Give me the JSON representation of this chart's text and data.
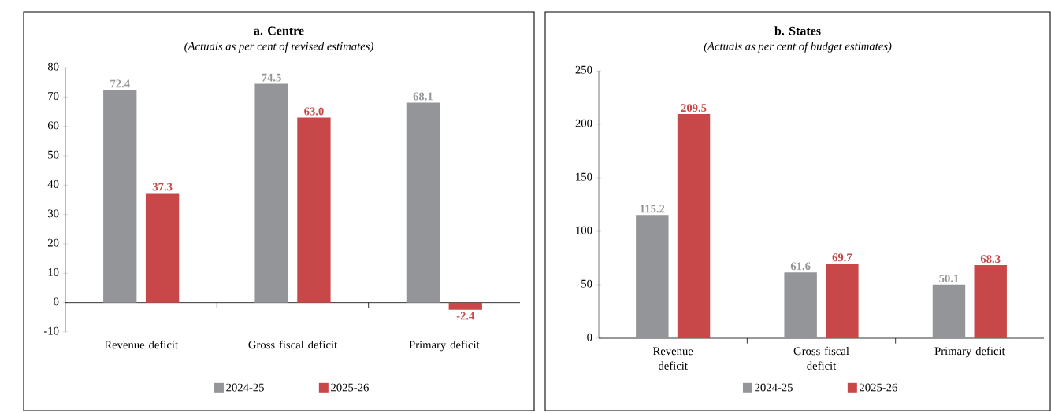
{
  "chart_data": [
    {
      "type": "bar",
      "title": "a. Centre",
      "subtitle": "(Actuals as per cent of revised estimates)",
      "categories": [
        "Revenue deficit",
        "Gross fiscal deficit",
        "Primary deficit"
      ],
      "series": [
        {
          "name": "2024-25",
          "color": "#939598",
          "values": [
            72.4,
            74.5,
            68.1
          ],
          "value_labels": [
            "72.4",
            "74.5",
            "68.1"
          ]
        },
        {
          "name": "2025-26",
          "color": "#c8484a",
          "values": [
            37.3,
            63.0,
            -2.4
          ],
          "value_labels": [
            "37.3",
            "63.0",
            "-2.4"
          ]
        }
      ],
      "ylim": [
        -10,
        80
      ],
      "yticks": [
        -10,
        0,
        10,
        20,
        30,
        40,
        50,
        60,
        70,
        80
      ],
      "legend": "bottom"
    },
    {
      "type": "bar",
      "title": "b. States",
      "subtitle": "(Actuals as per cent of budget estimates)",
      "categories": [
        "Revenue deficit",
        "Gross fiscal deficit",
        "Primary deficit"
      ],
      "series": [
        {
          "name": "2024-25",
          "color": "#939598",
          "values": [
            115.2,
            61.6,
            50.1
          ],
          "value_labels": [
            "115.2",
            "61.6",
            "50.1"
          ]
        },
        {
          "name": "2025-26",
          "color": "#c8484a",
          "values": [
            209.5,
            69.7,
            68.3
          ],
          "value_labels": [
            "209.5",
            "69.7",
            "68.3"
          ]
        }
      ],
      "ylim": [
        0,
        250
      ],
      "yticks": [
        0,
        50,
        100,
        150,
        200,
        250
      ],
      "legend": "bottom"
    }
  ]
}
